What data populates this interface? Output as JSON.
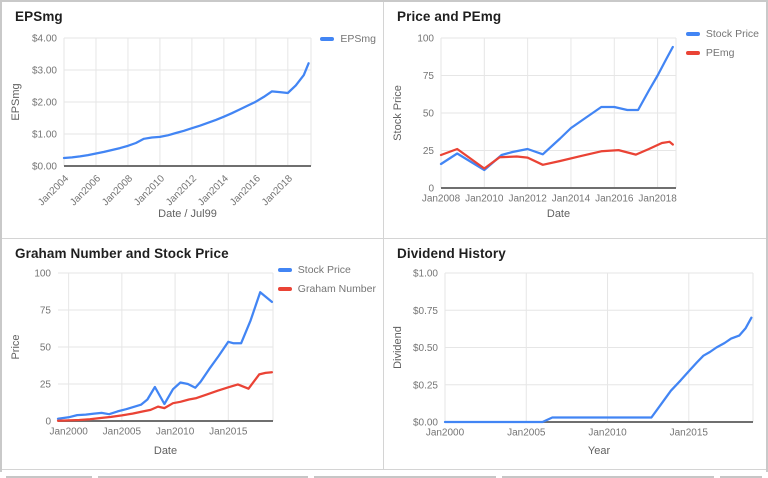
{
  "chart_data": [
    {
      "type": "line",
      "title": "EPSmg",
      "xlabel": "Date / Jul99",
      "ylabel": "EPSmg",
      "xlim": [
        2004,
        2019.45
      ],
      "ylim": [
        0,
        4
      ],
      "x_ticks": [
        2004,
        2006,
        2008,
        2010,
        2012,
        2014,
        2016,
        2018
      ],
      "x_tick_labels": [
        "Jan2004",
        "Jan2006",
        "Jan2008",
        "Jan2010",
        "Jan2012",
        "Jan2014",
        "Jan2016",
        "Jan2018"
      ],
      "rotate_x_labels": true,
      "y_ticks": [
        0,
        1,
        2,
        3,
        4
      ],
      "y_tick_labels": [
        "$0.00",
        "$1.00",
        "$2.00",
        "$3.00",
        "$4.00"
      ],
      "show_legend": true,
      "legend_position": "top-right",
      "grid": true,
      "series": [
        {
          "name": "EPSmg",
          "color": "#4285f4",
          "x": [
            2004,
            2004.5,
            2005,
            2005.5,
            2006,
            2006.5,
            2007,
            2007.5,
            2008,
            2008.5,
            2009,
            2009.5,
            2010,
            2010.5,
            2011,
            2011.5,
            2012,
            2012.5,
            2013,
            2013.5,
            2014,
            2014.5,
            2015,
            2015.5,
            2016,
            2016.5,
            2017,
            2017.5,
            2018,
            2018.5,
            2019,
            2019.3
          ],
          "y": [
            0.25,
            0.27,
            0.3,
            0.34,
            0.39,
            0.44,
            0.5,
            0.56,
            0.63,
            0.72,
            0.85,
            0.89,
            0.91,
            0.96,
            1.03,
            1.1,
            1.18,
            1.26,
            1.35,
            1.44,
            1.54,
            1.65,
            1.77,
            1.89,
            2.01,
            2.16,
            2.33,
            2.31,
            2.28,
            2.52,
            2.84,
            3.21
          ]
        }
      ]
    },
    {
      "type": "line",
      "title": "Price and PEmg",
      "xlabel": "Date",
      "ylabel": "Stock Price",
      "xlim": [
        2008,
        2018.85
      ],
      "ylim": [
        0,
        100
      ],
      "x_ticks": [
        2008,
        2010,
        2012,
        2014,
        2016,
        2018
      ],
      "x_tick_labels": [
        "Jan2008",
        "Jan2010",
        "Jan2012",
        "Jan2014",
        "Jan2016",
        "Jan2018"
      ],
      "rotate_x_labels": false,
      "y_ticks": [
        0,
        25,
        50,
        75,
        100
      ],
      "y_tick_labels": [
        "0",
        "25",
        "50",
        "75",
        "100"
      ],
      "show_legend": true,
      "legend_position": "top-right",
      "grid": true,
      "series": [
        {
          "name": "Stock Price",
          "color": "#4285f4",
          "x": [
            2008,
            2008.75,
            2010,
            2010.8,
            2011.3,
            2012,
            2012.7,
            2013.5,
            2014,
            2014.7,
            2015.4,
            2016,
            2016.6,
            2017.1,
            2017.6,
            2018,
            2018.4,
            2018.7
          ],
          "y": [
            16,
            23,
            12,
            22,
            24,
            26,
            22.5,
            33,
            40,
            47,
            54,
            54,
            52,
            52,
            65,
            75,
            86,
            94
          ]
        },
        {
          "name": "PEmg",
          "color": "#ea4335",
          "x": [
            2008,
            2008.75,
            2010,
            2010.7,
            2011.5,
            2012,
            2012.7,
            2013.5,
            2014.5,
            2015.4,
            2016.2,
            2017,
            2017.6,
            2018.2,
            2018.55,
            2018.7
          ],
          "y": [
            22,
            26,
            13,
            20.5,
            21,
            20.3,
            15.5,
            18,
            21.5,
            24.5,
            25.3,
            22.3,
            26,
            30,
            30.8,
            29
          ]
        }
      ]
    },
    {
      "type": "line",
      "title": "Graham Number and Stock Price",
      "xlabel": "Date",
      "ylabel": "Price",
      "xlim": [
        1999,
        2019.2
      ],
      "ylim": [
        0,
        100
      ],
      "x_ticks": [
        2000,
        2005,
        2010,
        2015
      ],
      "x_tick_labels": [
        "Jan2000",
        "Jan2005",
        "Jan2010",
        "Jan2015"
      ],
      "rotate_x_labels": false,
      "y_ticks": [
        0,
        25,
        50,
        75,
        100
      ],
      "y_tick_labels": [
        "0",
        "25",
        "50",
        "75",
        "100"
      ],
      "show_legend": true,
      "legend_position": "top-right",
      "grid": true,
      "series": [
        {
          "name": "Stock Price",
          "color": "#4285f4",
          "x": [
            1999,
            2000,
            2000.8,
            2001.6,
            2002.4,
            2003.1,
            2003.8,
            2004.6,
            2005.4,
            2006.1,
            2006.8,
            2007.4,
            2008.1,
            2009,
            2009.8,
            2010.5,
            2011.2,
            2011.9,
            2012.4,
            2013.2,
            2014.1,
            2015,
            2015.5,
            2016.2,
            2017.1,
            2018,
            2019.1
          ],
          "y": [
            1.5,
            2.5,
            4,
            4.3,
            5,
            5.5,
            4.6,
            6.5,
            8,
            9.5,
            11,
            14.5,
            23,
            11.5,
            21.5,
            26,
            25,
            22.5,
            26.5,
            35,
            44,
            53.5,
            52.5,
            52.5,
            68,
            87,
            80.5
          ]
        },
        {
          "name": "Graham Number",
          "color": "#ea4335",
          "x": [
            1999,
            2000,
            2001,
            2002,
            2003,
            2004,
            2005,
            2006,
            2007,
            2007.7,
            2008.4,
            2009,
            2009.8,
            2010.5,
            2011.3,
            2012,
            2013,
            2014,
            2015,
            2015.9,
            2016.9,
            2017.9,
            2018.5,
            2019.1
          ],
          "y": [
            0.2,
            0.4,
            0.7,
            1.2,
            2,
            2.8,
            3.8,
            5,
            6.5,
            7.5,
            9.7,
            8.7,
            12,
            13,
            14.5,
            15.5,
            18,
            20.5,
            22.8,
            24.7,
            21.8,
            31.5,
            32.5,
            33
          ]
        }
      ]
    },
    {
      "type": "line",
      "title": "Dividend History",
      "xlabel": "Year",
      "ylabel": "Dividend",
      "xlim": [
        2000,
        2018.95
      ],
      "ylim": [
        0,
        1
      ],
      "x_ticks": [
        2000,
        2005,
        2010,
        2015
      ],
      "x_tick_labels": [
        "Jan2000",
        "Jan2005",
        "Jan2010",
        "Jan2015"
      ],
      "rotate_x_labels": false,
      "y_ticks": [
        0,
        0.25,
        0.5,
        0.75,
        1
      ],
      "y_tick_labels": [
        "$0.00",
        "$0.25",
        "$0.50",
        "$0.75",
        "$1.00"
      ],
      "show_legend": false,
      "grid": true,
      "series": [
        {
          "name": "Dividend",
          "color": "#4285f4",
          "x": [
            2000,
            2001,
            2002,
            2003,
            2004,
            2005,
            2006,
            2006.6,
            2007,
            2008,
            2009,
            2010,
            2011,
            2012,
            2012.7,
            2013.3,
            2013.9,
            2014.5,
            2015,
            2015.5,
            2015.9,
            2016.3,
            2016.7,
            2017.2,
            2017.6,
            2018.1,
            2018.5,
            2018.85
          ],
          "y": [
            0,
            0,
            0,
            0,
            0,
            0,
            0,
            0.03,
            0.03,
            0.03,
            0.03,
            0.03,
            0.03,
            0.03,
            0.03,
            0.12,
            0.21,
            0.28,
            0.34,
            0.4,
            0.445,
            0.47,
            0.5,
            0.53,
            0.56,
            0.58,
            0.63,
            0.7
          ]
        }
      ]
    }
  ],
  "colors": {
    "series_blue": "#4285f4",
    "series_red": "#ea4335",
    "gridline": "#e6e6e6",
    "baseline": "#6f6f6f",
    "tick_label": "#757575",
    "axis_title": "#616161",
    "title_text": "#1f1f1f"
  }
}
